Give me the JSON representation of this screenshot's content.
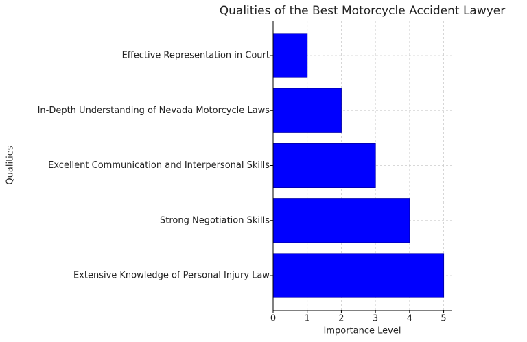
{
  "chart_data": {
    "type": "barh",
    "title": "Qualities of the Best Motorcycle Accident Lawyer",
    "x_label": "Importance Level",
    "y_label": "Qualities",
    "categories": [
      "Extensive Knowledge of Personal Injury Law",
      "Strong Negotiation Skills",
      "Excellent Communication and Interpersonal Skills",
      "In-Depth Understanding of Nevada Motorcycle Laws",
      "Effective Representation in Court"
    ],
    "values": [
      5,
      4,
      3,
      2,
      1
    ],
    "color": "#0000ff",
    "xlim": [
      0,
      5.25
    ],
    "xticks": [
      0,
      1,
      2,
      3,
      4,
      5
    ],
    "grid": true
  }
}
